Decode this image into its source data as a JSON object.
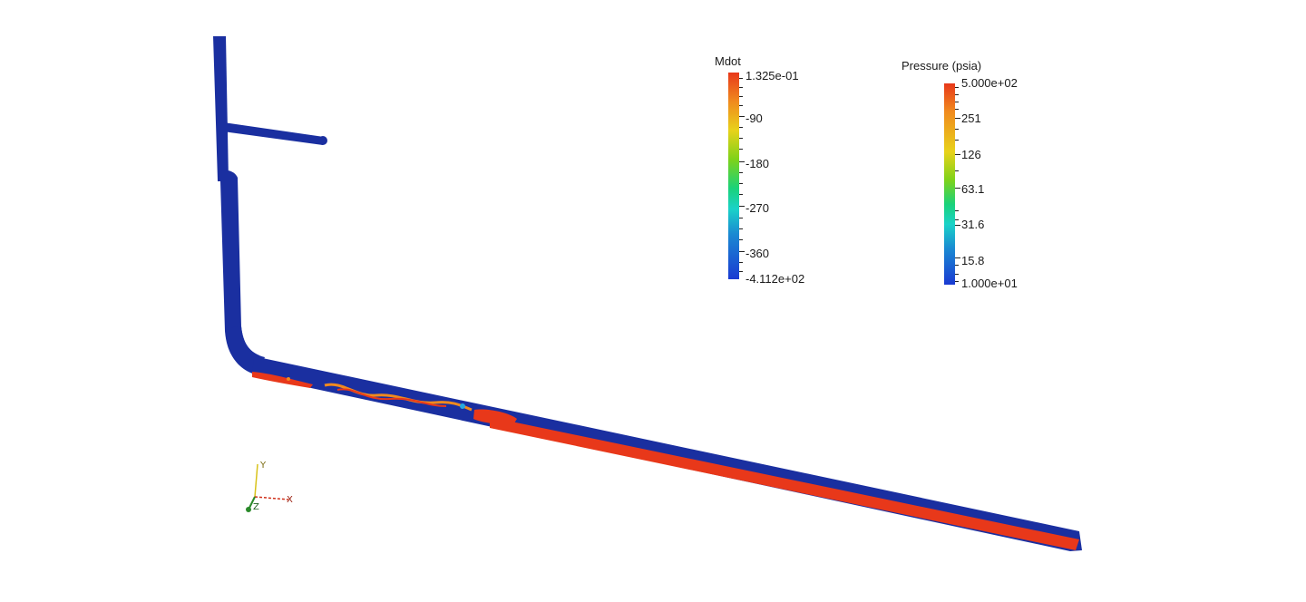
{
  "mdot_legend": {
    "title": "Mdot",
    "labels": [
      "1.325e-01",
      "-90",
      "-180",
      "-270",
      "-360",
      "-4.112e+02"
    ]
  },
  "pressure_legend": {
    "title": "Pressure (psia)",
    "labels": [
      "5.000e+02",
      "251",
      "126",
      "63.1",
      "31.6",
      "15.8",
      "1.000e+01"
    ]
  },
  "orientation_axes": {
    "x_label": "X",
    "y_label": "Y",
    "z_label": "Z"
  },
  "colors": {
    "pipe_blue": "#1a2fa0",
    "pipe_red": "#e8381a",
    "orange": "#f08a1e",
    "axis_x": "#d0301a",
    "axis_y": "#d8c21a",
    "axis_z": "#2a8a2a"
  }
}
